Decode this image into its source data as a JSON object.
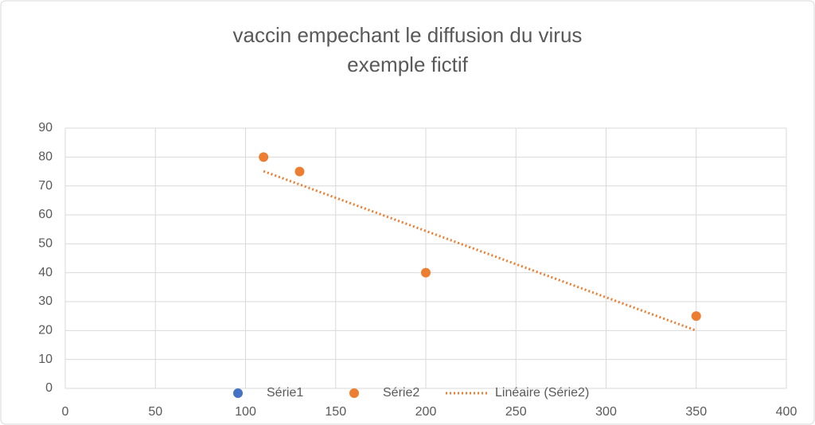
{
  "chart_data": {
    "type": "scatter",
    "title": "vaccin empechant le diffusion du virus",
    "subtitle": "exemple fictif",
    "xlim": [
      0,
      400
    ],
    "xticks": [
      0,
      50,
      100,
      150,
      200,
      250,
      300,
      350,
      400
    ],
    "ylim": [
      0,
      90
    ],
    "yticks": [
      0,
      10,
      20,
      30,
      40,
      50,
      60,
      70,
      80,
      90
    ],
    "grid": true,
    "legend": "bottom",
    "series": [
      {
        "name": "Série1",
        "color": "#4472c4",
        "style": "markers",
        "x": [],
        "values": []
      },
      {
        "name": "Série2",
        "color": "#ed7d31",
        "style": "markers",
        "x": [
          110,
          130,
          200,
          350
        ],
        "values": [
          80,
          75,
          40,
          25
        ]
      },
      {
        "name": "Linéaire  (Série2)",
        "color": "#ed7d31",
        "style": "dotted-line",
        "x": [
          110,
          350
        ],
        "values": [
          75.1,
          20.0
        ]
      }
    ]
  }
}
